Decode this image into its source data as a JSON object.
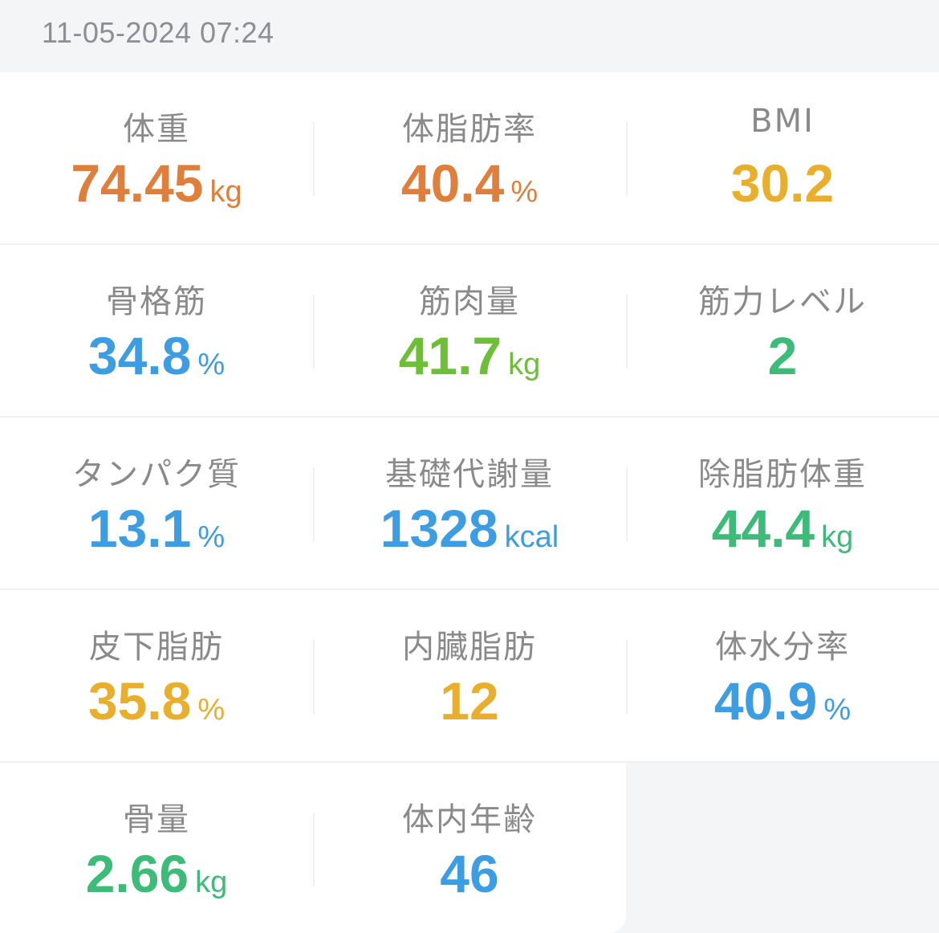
{
  "header": {
    "timestamp": "11-05-2024 07:24"
  },
  "metrics": [
    {
      "label": "体重",
      "value": "74.45",
      "unit": "kg",
      "color": "#e07f3c"
    },
    {
      "label": "体脂肪率",
      "value": "40.4",
      "unit": "%",
      "color": "#e07f3c"
    },
    {
      "label": "BMI",
      "value": "30.2",
      "unit": "",
      "color": "#e9ae2b"
    },
    {
      "label": "骨格筋",
      "value": "34.8",
      "unit": "%",
      "color": "#3d9de3"
    },
    {
      "label": "筋肉量",
      "value": "41.7",
      "unit": "kg",
      "color": "#6cbf37"
    },
    {
      "label": "筋力レベル",
      "value": "2",
      "unit": "",
      "color": "#3dbb78"
    },
    {
      "label": "タンパク質",
      "value": "13.1",
      "unit": "%",
      "color": "#3d9de3"
    },
    {
      "label": "基礎代謝量",
      "value": "1328",
      "unit": "kcal",
      "color": "#3d9de3"
    },
    {
      "label": "除脂肪体重",
      "value": "44.4",
      "unit": "kg",
      "color": "#3dbb78"
    },
    {
      "label": "皮下脂肪",
      "value": "35.8",
      "unit": "%",
      "color": "#e9ae2b"
    },
    {
      "label": "内臓脂肪",
      "value": "12",
      "unit": "",
      "color": "#e9ae2b"
    },
    {
      "label": "体水分率",
      "value": "40.9",
      "unit": "%",
      "color": "#3d9de3"
    },
    {
      "label": "骨量",
      "value": "2.66",
      "unit": "kg",
      "color": "#3dbb78"
    },
    {
      "label": "体内年齢",
      "value": "46",
      "unit": "",
      "color": "#3d9de3"
    }
  ]
}
